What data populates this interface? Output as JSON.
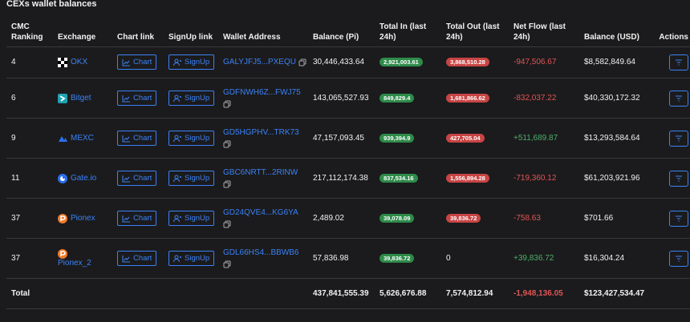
{
  "title": "CEXs wallet balances",
  "table": {
    "headers": [
      "CMC Ranking",
      "Exchange",
      "Chart link",
      "SignUp link",
      "Wallet Address",
      "Balance (Pi)",
      "Total In (last 24h)",
      "Total Out (last 24h)",
      "Net Flow (last 24h)",
      "Balance (USD)",
      "Actions"
    ],
    "chart_button": "Chart",
    "signup_button": "SignUp",
    "rows": [
      {
        "rank": "4",
        "exchange": "OKX",
        "address": "GALYJFJ5...PXEQU",
        "balance": "30,446,433.64",
        "total_in": "2,921,003.61",
        "total_out": "3,868,510.28",
        "net_flow": "-947,506.67",
        "balance_usd": "$8,582,849.64"
      },
      {
        "rank": "6",
        "exchange": "Bitget",
        "address": "GDFNWH6Z...FWJ75",
        "balance": "143,065,527.93",
        "total_in": "849,829.4",
        "total_out": "1,681,866.62",
        "net_flow": "-832,037.22",
        "balance_usd": "$40,330,172.32"
      },
      {
        "rank": "9",
        "exchange": "MEXC",
        "address": "GD5HGPHV...TRK73",
        "balance": "47,157,093.45",
        "total_in": "939,394.9",
        "total_out": "427,705.04",
        "net_flow": "+511,689.87",
        "balance_usd": "$13,293,584.64"
      },
      {
        "rank": "11",
        "exchange": "Gate.io",
        "address": "GBC6NRTT...2RINW",
        "balance": "217,112,174.38",
        "total_in": "837,534.16",
        "total_out": "1,556,894.28",
        "net_flow": "-719,360.12",
        "balance_usd": "$61,203,921.96"
      },
      {
        "rank": "37",
        "exchange": "Pionex",
        "address": "GD24QVE4...KG6YA",
        "balance": "2,489.02",
        "total_in": "39,078.09",
        "total_out": "39,836.72",
        "net_flow": "-758.63",
        "balance_usd": "$701.66"
      },
      {
        "rank": "37",
        "exchange": "Pionex_2",
        "address": "GDL66HS4...BBWB6",
        "balance": "57,836.98",
        "total_in": "39,836.72",
        "total_out": "0",
        "net_flow": "+39,836.72",
        "balance_usd": "$16,304.24"
      }
    ],
    "total": {
      "label": "Total",
      "balance": "437,841,555.39",
      "total_in": "5,626,676.88",
      "total_out": "7,574,812.94",
      "net_flow": "-1,948,136.05",
      "balance_usd": "$123,427,534.47"
    }
  }
}
